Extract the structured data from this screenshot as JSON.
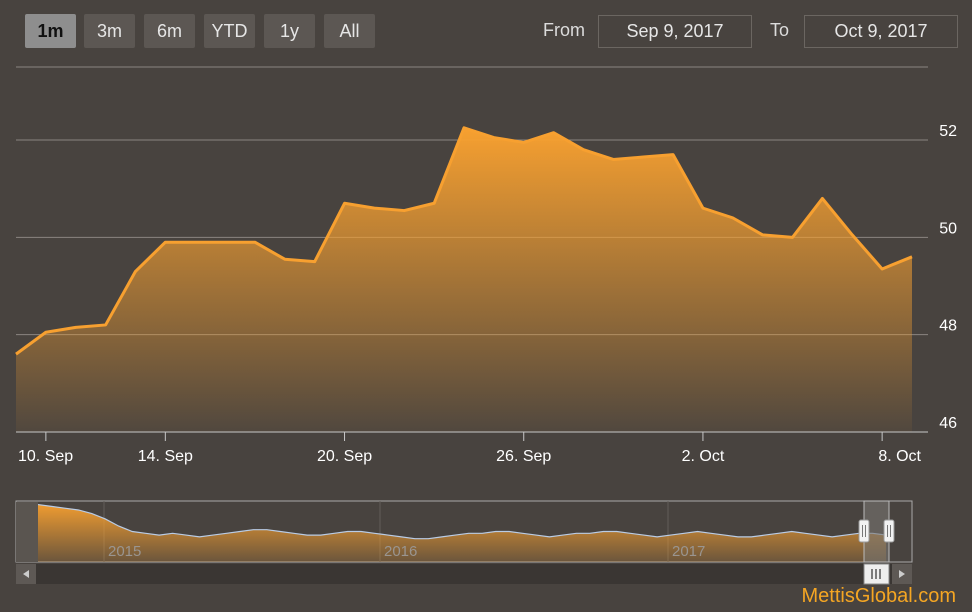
{
  "range_selector": {
    "buttons": [
      "1m",
      "3m",
      "6m",
      "YTD",
      "1y",
      "All"
    ],
    "selected": "1m"
  },
  "date_range": {
    "from_label": "From",
    "from_value": "Sep 9, 2017",
    "to_label": "To",
    "to_value": "Oct 9, 2017"
  },
  "watermark": "MettisGlobal.com",
  "colors": {
    "line": "#f7a030",
    "fill_top": "#f7a030",
    "background": "#48433f"
  },
  "chart_data": {
    "type": "area",
    "x": [
      "2017-09-09",
      "2017-09-10",
      "2017-09-11",
      "2017-09-12",
      "2017-09-13",
      "2017-09-14",
      "2017-09-15",
      "2017-09-16",
      "2017-09-17",
      "2017-09-18",
      "2017-09-19",
      "2017-09-20",
      "2017-09-21",
      "2017-09-22",
      "2017-09-23",
      "2017-09-24",
      "2017-09-25",
      "2017-09-26",
      "2017-09-27",
      "2017-09-28",
      "2017-09-29",
      "2017-09-30",
      "2017-10-01",
      "2017-10-02",
      "2017-10-03",
      "2017-10-04",
      "2017-10-05",
      "2017-10-06",
      "2017-10-07",
      "2017-10-08",
      "2017-10-09"
    ],
    "y": [
      47.6,
      48.05,
      48.15,
      48.2,
      49.3,
      49.9,
      49.9,
      49.9,
      49.9,
      49.55,
      49.5,
      50.7,
      50.6,
      50.55,
      50.7,
      52.25,
      52.05,
      51.95,
      52.15,
      51.8,
      51.6,
      51.65,
      51.7,
      50.6,
      50.4,
      50.05,
      50.0,
      50.8,
      50.05,
      49.35,
      49.6
    ],
    "x_ticks": [
      "10. Sep",
      "14. Sep",
      "20. Sep",
      "26. Sep",
      "2. Oct",
      "8. Oct"
    ],
    "y_ticks": [
      "46",
      "48",
      "50",
      "52"
    ],
    "ylim": [
      46,
      53.5
    ],
    "grid": true,
    "navigator": {
      "type": "area",
      "year_labels": [
        "2015",
        "2016",
        "2017"
      ],
      "y": [
        62,
        61,
        60,
        59,
        57,
        54,
        50,
        47,
        46,
        45,
        46,
        45,
        44,
        45,
        46,
        47,
        48,
        48,
        47,
        46,
        45,
        45,
        46,
        47,
        47,
        46,
        45,
        44,
        43,
        43,
        44,
        45,
        46,
        46,
        47,
        47,
        46,
        45,
        44,
        45,
        46,
        46,
        47,
        47,
        46,
        45,
        44,
        45,
        46,
        47,
        46,
        45,
        44,
        44,
        45,
        46,
        47,
        46,
        45,
        44,
        45,
        46,
        46,
        45
      ]
    }
  }
}
